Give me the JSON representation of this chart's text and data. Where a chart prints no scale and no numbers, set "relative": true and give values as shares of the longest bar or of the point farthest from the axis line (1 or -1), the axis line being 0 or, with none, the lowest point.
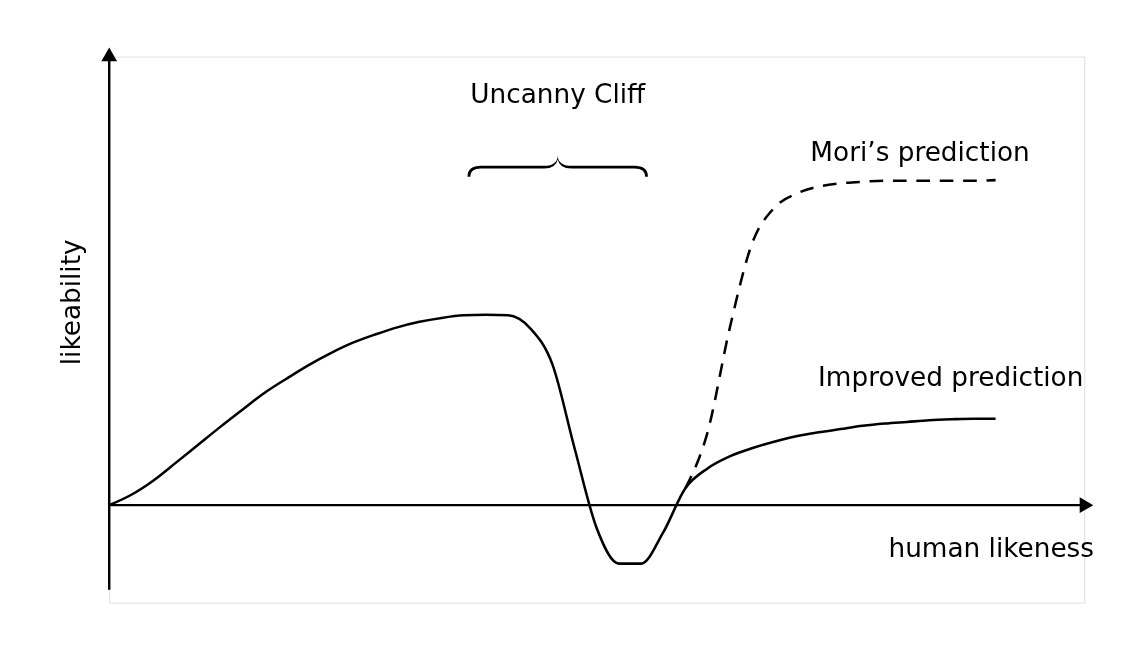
{
  "chart_data": {
    "type": "line",
    "relative": true,
    "xlabel": "human likeness",
    "ylabel": "likeability",
    "categories": [
      null,
      null,
      null,
      null,
      null,
      null,
      null,
      null,
      null,
      null,
      null,
      null,
      null,
      null,
      null,
      null,
      null,
      null,
      null,
      null,
      null,
      null,
      null,
      null,
      null,
      null,
      null,
      null,
      null,
      null,
      null,
      null,
      null,
      null,
      null,
      null,
      null,
      null,
      null,
      null,
      null
    ],
    "series": [
      {
        "name": "Improved prediction",
        "color": "#000000",
        "line_style": "solid",
        "values": [
          0,
          0.032,
          0.076,
          0.13,
          0.185,
          0.24,
          0.293,
          0.345,
          0.389,
          0.431,
          0.468,
          0.5,
          0.525,
          0.547,
          0.564,
          0.576,
          0.584,
          0.586,
          0.584,
          0.544,
          0.433,
          0.175,
          -0.071,
          -0.18,
          -0.18,
          -0.084,
          0.052,
          0.113,
          0.15,
          0.175,
          0.195,
          0.212,
          0.224,
          0.234,
          0.244,
          0.251,
          0.256,
          0.261,
          0.264,
          0.266,
          0.266
        ]
      },
      {
        "name": "Mori’s prediction",
        "color": "#000000",
        "line_style": "dashed",
        "values": [
          null,
          null,
          null,
          null,
          null,
          null,
          null,
          null,
          null,
          null,
          null,
          null,
          null,
          null,
          null,
          null,
          null,
          null,
          null,
          null,
          null,
          null,
          null,
          null,
          null,
          null,
          0.052,
          0.224,
          0.544,
          0.803,
          0.914,
          0.958,
          0.98,
          0.99,
          0.995,
          0.998,
          0.998,
          0.998,
          0.998,
          0.998,
          1
        ]
      }
    ],
    "annotations": [
      "Uncanny Cliff"
    ]
  }
}
